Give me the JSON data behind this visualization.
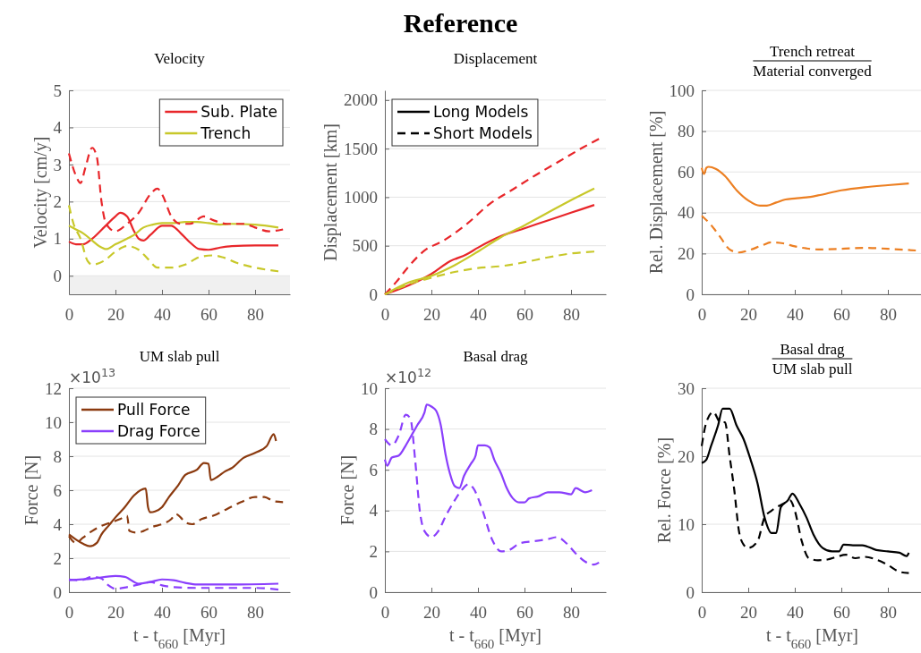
{
  "chart_data": [
    {
      "type": "line",
      "title": "Velocity",
      "ylabel": "Velocity [cm/y]",
      "xlim": [
        0,
        95
      ],
      "xticks": [
        0,
        20,
        40,
        60,
        80
      ],
      "ylim": [
        -0.5,
        5
      ],
      "yticks": [
        0,
        1,
        2,
        3,
        4,
        5
      ],
      "grid": "y",
      "legend": "top right",
      "annotations": [
        "Reference"
      ],
      "bands": [
        {
          "axis": "y",
          "from": -0.5,
          "to": 0,
          "color": "#f0f0f0"
        }
      ],
      "series": [
        {
          "name": "Sub. Plate",
          "color": "#e8262a",
          "line_style": "solid",
          "x": [
            0,
            3,
            6,
            10,
            15,
            20,
            22,
            25,
            28,
            30,
            32,
            35,
            40,
            44,
            48,
            52,
            56,
            60,
            65,
            70,
            80,
            90
          ],
          "values": [
            0.92,
            0.85,
            0.85,
            1.0,
            1.3,
            1.6,
            1.7,
            1.6,
            1.2,
            1.0,
            0.95,
            1.1,
            1.35,
            1.35,
            1.15,
            0.9,
            0.72,
            0.7,
            0.76,
            0.8,
            0.82,
            0.82
          ]
        },
        {
          "name": "Trench",
          "color": "#c8c82a",
          "line_style": "solid",
          "x": [
            0,
            3,
            6,
            10,
            13,
            16,
            20,
            25,
            28,
            32,
            36,
            40,
            45,
            50,
            55,
            60,
            65,
            70,
            80,
            90
          ],
          "values": [
            1.35,
            1.25,
            1.15,
            0.95,
            0.8,
            0.72,
            0.85,
            1.0,
            1.1,
            1.3,
            1.38,
            1.42,
            1.42,
            1.45,
            1.45,
            1.42,
            1.38,
            1.4,
            1.38,
            1.3
          ]
        },
        {
          "color": "#e8262a",
          "line_style": "dashed",
          "x": [
            0,
            3,
            5,
            7,
            10,
            12,
            14,
            16,
            20,
            25,
            30,
            35,
            38,
            40,
            44,
            48,
            52,
            58,
            62,
            68,
            75,
            80,
            86,
            92
          ],
          "values": [
            3.3,
            2.7,
            2.5,
            2.9,
            3.45,
            3.2,
            2.0,
            1.4,
            1.2,
            1.4,
            1.7,
            2.2,
            2.35,
            2.2,
            1.6,
            1.4,
            1.4,
            1.6,
            1.5,
            1.4,
            1.4,
            1.3,
            1.2,
            1.25
          ]
        },
        {
          "color": "#c8c82a",
          "line_style": "dashed",
          "x": [
            0,
            2,
            5,
            8,
            10,
            15,
            20,
            25,
            30,
            34,
            38,
            44,
            50,
            56,
            62,
            66,
            72,
            80,
            90
          ],
          "values": [
            1.9,
            1.4,
            1.0,
            0.4,
            0.3,
            0.4,
            0.65,
            0.8,
            0.7,
            0.45,
            0.22,
            0.22,
            0.3,
            0.5,
            0.55,
            0.5,
            0.35,
            0.22,
            0.12
          ]
        }
      ]
    },
    {
      "type": "line",
      "title": "Displacement",
      "ylabel": "Displacement [km]",
      "xlim": [
        0,
        95
      ],
      "xticks": [
        0,
        20,
        40,
        60,
        80
      ],
      "ylim": [
        0,
        2100
      ],
      "yticks": [
        0,
        500,
        1000,
        1500,
        2000
      ],
      "grid": "y",
      "legend": "top left",
      "annotations": [
        "Long Models",
        "Short Models"
      ],
      "series": [
        {
          "color": "#e8262a",
          "line_style": "solid",
          "x": [
            0,
            10,
            20,
            28,
            35,
            40,
            50,
            60,
            70,
            80,
            90
          ],
          "values": [
            0,
            90,
            210,
            340,
            410,
            480,
            600,
            680,
            760,
            840,
            920
          ]
        },
        {
          "color": "#c8c82a",
          "line_style": "solid",
          "x": [
            0,
            10,
            20,
            30,
            40,
            50,
            60,
            70,
            80,
            90
          ],
          "values": [
            0,
            120,
            190,
            300,
            440,
            590,
            710,
            840,
            970,
            1090
          ]
        },
        {
          "color": "#e8262a",
          "line_style": "dashed",
          "x": [
            0,
            5,
            10,
            17,
            25,
            35,
            45,
            55,
            65,
            75,
            85,
            92
          ],
          "values": [
            0,
            130,
            280,
            450,
            550,
            720,
            930,
            1080,
            1230,
            1370,
            1510,
            1600
          ]
        },
        {
          "color": "#c8c82a",
          "line_style": "dashed",
          "x": [
            0,
            10,
            20,
            30,
            40,
            50,
            60,
            70,
            80,
            90
          ],
          "values": [
            0,
            100,
            170,
            230,
            270,
            290,
            330,
            380,
            420,
            440
          ]
        }
      ]
    },
    {
      "type": "line",
      "title": "Trench retreat",
      "subtitle": "Material converged",
      "ylabel": "Rel. Displacement [%]",
      "xlim": [
        0,
        95
      ],
      "xticks": [
        0,
        20,
        40,
        60,
        80
      ],
      "ylim": [
        0,
        100
      ],
      "yticks": [
        0,
        20,
        40,
        60,
        80,
        100
      ],
      "grid": "y",
      "series": [
        {
          "color": "#ec7f22",
          "line_style": "solid",
          "x": [
            0,
            1,
            2,
            3,
            6,
            10,
            15,
            20,
            25,
            28,
            32,
            36,
            40,
            45,
            50,
            60,
            70,
            80,
            89
          ],
          "values": [
            62,
            59,
            62,
            62.5,
            61.5,
            58,
            51,
            46,
            43.5,
            43.5,
            45,
            46.5,
            47,
            47.5,
            48.5,
            51,
            52.5,
            53.5,
            54.3
          ]
        },
        {
          "color": "#ec7f22",
          "line_style": "dashed",
          "x": [
            0,
            4,
            8,
            12,
            16,
            20,
            26,
            30,
            35,
            40,
            45,
            50,
            60,
            70,
            80,
            92
          ],
          "values": [
            38.5,
            34,
            28,
            22,
            20.5,
            21.5,
            24,
            25.5,
            25,
            23.5,
            22.5,
            22,
            22.3,
            22.8,
            22.3,
            21.5
          ]
        }
      ]
    },
    {
      "type": "line",
      "title": "UM slab pull",
      "xlabel": "t - t$_{660}$ [Myr]",
      "ylabel": "Force [N]",
      "xlim": [
        0,
        95
      ],
      "xticks": [
        0,
        20,
        40,
        60,
        80
      ],
      "ylim": [
        0,
        12
      ],
      "yticks": [
        0,
        2,
        4,
        6,
        8,
        10,
        12
      ],
      "grid": "y",
      "legend": "top left",
      "annotations": [
        "×10$^{13}$"
      ],
      "series": [
        {
          "name": "Pull Force",
          "color": "#8b3a0f",
          "line_style": "solid",
          "x": [
            0,
            3,
            6,
            9,
            12,
            14,
            17,
            20,
            24,
            28,
            33,
            34,
            35,
            37,
            40,
            43,
            47,
            50,
            55,
            58,
            60,
            61,
            64,
            67,
            70,
            75,
            80,
            85,
            88,
            89
          ],
          "values": [
            3.4,
            3.1,
            2.85,
            2.7,
            2.9,
            3.4,
            3.9,
            4.4,
            5.0,
            5.7,
            6.1,
            5.0,
            4.7,
            4.75,
            5.0,
            5.6,
            6.3,
            6.9,
            7.2,
            7.6,
            7.55,
            6.6,
            6.8,
            7.1,
            7.3,
            7.9,
            8.2,
            8.6,
            9.3,
            8.9
          ]
        },
        {
          "name": "Drag Force",
          "color": "#8a3ffc",
          "line_style": "solid",
          "x": [
            0,
            10,
            20,
            24,
            30,
            35,
            40,
            45,
            50,
            55,
            70,
            90
          ],
          "values": [
            0.7,
            0.8,
            0.95,
            0.9,
            0.5,
            0.6,
            0.75,
            0.7,
            0.55,
            0.45,
            0.45,
            0.5
          ]
        },
        {
          "color": "#8b3a0f",
          "line_style": "dashed",
          "x": [
            0,
            3,
            6,
            10,
            14,
            18,
            22,
            25,
            26,
            29,
            32,
            36,
            40,
            44,
            46,
            48,
            50,
            53,
            57,
            62,
            68,
            74,
            80,
            84,
            88,
            92
          ],
          "values": [
            3.3,
            2.9,
            3.2,
            3.6,
            3.9,
            4.1,
            4.3,
            4.5,
            3.6,
            3.5,
            3.6,
            3.85,
            4.0,
            4.3,
            4.6,
            4.4,
            4.1,
            4.0,
            4.3,
            4.5,
            4.9,
            5.3,
            5.6,
            5.6,
            5.35,
            5.3
          ]
        },
        {
          "color": "#8a3ffc",
          "line_style": "dashed",
          "x": [
            0,
            5,
            10,
            14,
            17,
            20,
            25,
            30,
            35,
            40,
            45,
            55,
            70,
            80,
            90
          ],
          "values": [
            0.75,
            0.7,
            0.9,
            0.8,
            0.4,
            0.2,
            0.3,
            0.45,
            0.6,
            0.4,
            0.3,
            0.25,
            0.25,
            0.25,
            0.15
          ]
        }
      ]
    },
    {
      "type": "line",
      "title": "Basal drag",
      "xlabel": "t - t$_{660}$ [Myr]",
      "ylabel": "Force [N]",
      "xlim": [
        0,
        95
      ],
      "xticks": [
        0,
        20,
        40,
        60,
        80
      ],
      "ylim": [
        0,
        10
      ],
      "yticks": [
        0,
        2,
        4,
        6,
        8,
        10
      ],
      "grid": "y",
      "annotations": [
        "×10$^{12}$"
      ],
      "series": [
        {
          "color": "#8a3ffc",
          "line_style": "solid",
          "x": [
            0,
            1,
            3,
            6,
            9,
            12,
            14,
            17,
            18,
            20,
            22,
            24,
            26,
            28,
            30,
            32,
            34,
            37,
            39,
            40,
            43,
            45,
            47,
            50,
            52,
            55,
            58,
            60,
            62,
            66,
            70,
            75,
            80,
            82,
            86,
            89
          ],
          "values": [
            6.5,
            6.2,
            6.6,
            6.7,
            7.2,
            7.8,
            8.2,
            8.8,
            9.2,
            9.1,
            8.9,
            8.2,
            6.8,
            5.8,
            5.2,
            5.1,
            5.7,
            6.3,
            6.7,
            7.2,
            7.2,
            7.1,
            6.5,
            5.8,
            5.2,
            4.6,
            4.4,
            4.4,
            4.6,
            4.7,
            4.9,
            4.9,
            4.8,
            5.1,
            4.9,
            5.0
          ]
        },
        {
          "color": "#8a3ffc",
          "line_style": "dashed",
          "x": [
            0,
            3,
            6,
            9,
            11,
            13,
            15,
            17,
            20,
            23,
            26,
            30,
            33,
            36,
            38,
            42,
            46,
            50,
            54,
            58,
            64,
            70,
            74,
            78,
            82,
            86,
            90,
            92
          ],
          "values": [
            7.5,
            7.2,
            7.7,
            8.7,
            8.5,
            6.5,
            4.0,
            3.0,
            2.7,
            3.0,
            3.7,
            4.5,
            5.0,
            5.3,
            5.1,
            4.0,
            2.6,
            2.0,
            2.1,
            2.4,
            2.5,
            2.6,
            2.7,
            2.4,
            1.9,
            1.5,
            1.35,
            1.45
          ]
        }
      ]
    },
    {
      "type": "line",
      "title": "Basal drag",
      "subtitle": "UM slab pull",
      "xlabel": "t - t$_{660}$ [Myr]",
      "ylabel": "Rel. Force [%]",
      "xlim": [
        0,
        95
      ],
      "xticks": [
        0,
        20,
        40,
        60,
        80
      ],
      "ylim": [
        0,
        30
      ],
      "yticks": [
        0,
        10,
        20,
        30
      ],
      "grid": "y",
      "series": [
        {
          "color": "#000000",
          "line_style": "solid",
          "x": [
            0,
            2,
            4,
            7,
            9,
            12,
            15,
            18,
            21,
            24,
            27,
            30,
            32,
            34,
            37,
            39,
            42,
            45,
            48,
            52,
            56,
            59,
            61,
            65,
            69,
            75,
            80,
            85,
            88,
            89
          ],
          "values": [
            19,
            19.5,
            21.5,
            24.5,
            27,
            27,
            24.5,
            22.5,
            19.5,
            16,
            11,
            8.7,
            8.7,
            12.5,
            13.5,
            14.5,
            13,
            11,
            8.5,
            6.5,
            6,
            6,
            7,
            6.9,
            6.9,
            6.2,
            6,
            5.8,
            5.3,
            5.8
          ]
        },
        {
          "color": "#000000",
          "line_style": "dashed",
          "x": [
            0,
            2,
            5,
            8,
            10,
            12,
            14,
            16,
            18,
            20,
            24,
            27,
            30,
            35,
            38,
            40,
            43,
            46,
            50,
            54,
            58,
            62,
            66,
            70,
            75,
            80,
            85,
            89
          ],
          "values": [
            21.5,
            25,
            26.5,
            25,
            25,
            20,
            15,
            9,
            7,
            6.5,
            7.5,
            11,
            12,
            13,
            13.5,
            12,
            7.5,
            5,
            4.7,
            4.8,
            5.2,
            5.5,
            5,
            5.2,
            4.8,
            4,
            3,
            2.8
          ]
        }
      ]
    }
  ]
}
